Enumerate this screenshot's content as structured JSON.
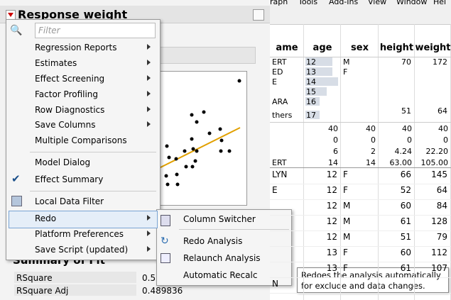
{
  "window": {
    "title": "Response weight",
    "menubar": [
      "raph",
      "Tools",
      "Add-Ins",
      "View",
      "Window",
      "Hel"
    ]
  },
  "menu": {
    "filter_placeholder": "Filter",
    "items": [
      {
        "label": "Regression Reports",
        "submenu": true
      },
      {
        "label": "Estimates",
        "submenu": true
      },
      {
        "label": "Effect Screening",
        "submenu": true
      },
      {
        "label": "Factor Profiling",
        "submenu": true
      },
      {
        "label": "Row Diagnostics",
        "submenu": true
      },
      {
        "label": "Save Columns",
        "submenu": true
      },
      {
        "label": "Multiple Comparisons",
        "submenu": false
      },
      {
        "label": "Model Dialog",
        "submenu": false
      },
      {
        "label": "Effect Summary",
        "submenu": false,
        "checked": true
      },
      {
        "label": "Local Data Filter",
        "submenu": false
      },
      {
        "label": "Redo",
        "submenu": true,
        "highlighted": true
      },
      {
        "label": "Platform Preferences",
        "submenu": true
      },
      {
        "label": "Save Script (updated)",
        "submenu": true
      }
    ]
  },
  "submenu": {
    "items": [
      "Column Switcher",
      "Redo Analysis",
      "Relaunch Analysis",
      "Automatic Recalc"
    ]
  },
  "tooltip": "Redoes the analysis automatically for exclude and data changes.",
  "table": {
    "columns": [
      "ame",
      "age",
      "sex",
      "height",
      "weight"
    ],
    "summary": {
      "name": [
        "ERT",
        "ED",
        "E",
        "ARA",
        "thers"
      ],
      "age": [
        "12",
        "13",
        "14",
        "15",
        "16",
        "17"
      ],
      "sex": [
        "M",
        "F"
      ],
      "height": [
        "70",
        "51"
      ],
      "weight": [
        "172",
        "64"
      ]
    },
    "stats": {
      "name": [
        "ERT"
      ],
      "age": [
        "40",
        "0",
        "6",
        "14"
      ],
      "sex": [
        "40",
        "0",
        "2",
        "14"
      ],
      "height": [
        "40",
        "0",
        "4.24",
        "63.00"
      ],
      "weight": [
        "40",
        "0",
        "22.20",
        "105.00"
      ]
    },
    "rows": [
      {
        "name": "LYN",
        "age": 12,
        "sex": "F",
        "height": 66,
        "weight": 145
      },
      {
        "name": "E",
        "age": 12,
        "sex": "F",
        "height": 52,
        "weight": 64
      },
      {
        "age": 12,
        "sex": "M",
        "height": 60,
        "weight": 84
      },
      {
        "age": 12,
        "sex": "M",
        "height": 61,
        "weight": 128
      },
      {
        "age": 12,
        "sex": "M",
        "height": 51,
        "weight": 79
      },
      {
        "age": 13,
        "sex": "F",
        "height": 60,
        "weight": 112
      },
      {
        "age": 13,
        "sex": "F",
        "height": 61,
        "weight": 107
      },
      {
        "name": "N"
      }
    ]
  },
  "report": {
    "section": "Summary of Fit",
    "rows": [
      [
        "RSquare",
        "0.5"
      ],
      [
        "RSquare Adj",
        "0.489836"
      ]
    ]
  }
}
